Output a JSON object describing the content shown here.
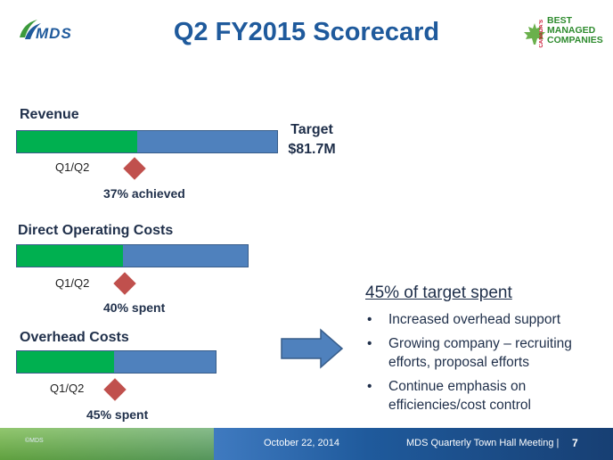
{
  "header": {
    "logo_text": "MDS",
    "title": "Q2 FY2015 Scorecard",
    "award_lines": [
      "BEST",
      "MANAGED",
      "COMPANIES"
    ],
    "award_side": "CANADA'S"
  },
  "revenue": {
    "label": "Revenue",
    "quarter_label": "Q1/Q2",
    "progress_pct": 37,
    "status": "37% achieved",
    "target_label": "Target",
    "target_value": "$81.7M"
  },
  "direct_costs": {
    "label": "Direct Operating Costs",
    "quarter_label": "Q1/Q2",
    "progress_pct": 40,
    "status": "40% spent"
  },
  "overhead": {
    "label": "Overhead Costs",
    "quarter_label": "Q1/Q2",
    "progress_pct": 45,
    "status": "45% spent"
  },
  "summary": {
    "heading": "45% of target spent",
    "bullets": [
      "Increased overhead support",
      "Growing company – recruiting efforts, proposal efforts",
      "Continue emphasis on efficiencies/cost control"
    ]
  },
  "footer": {
    "copyright": "©MDS",
    "date": "October 22, 2014",
    "meeting": "MDS Quarterly Town Hall Meeting |",
    "page": "7"
  },
  "colors": {
    "achieved": "#00b050",
    "remaining": "#4f81bd",
    "marker": "#c0504d",
    "title": "#1f5a9c"
  }
}
